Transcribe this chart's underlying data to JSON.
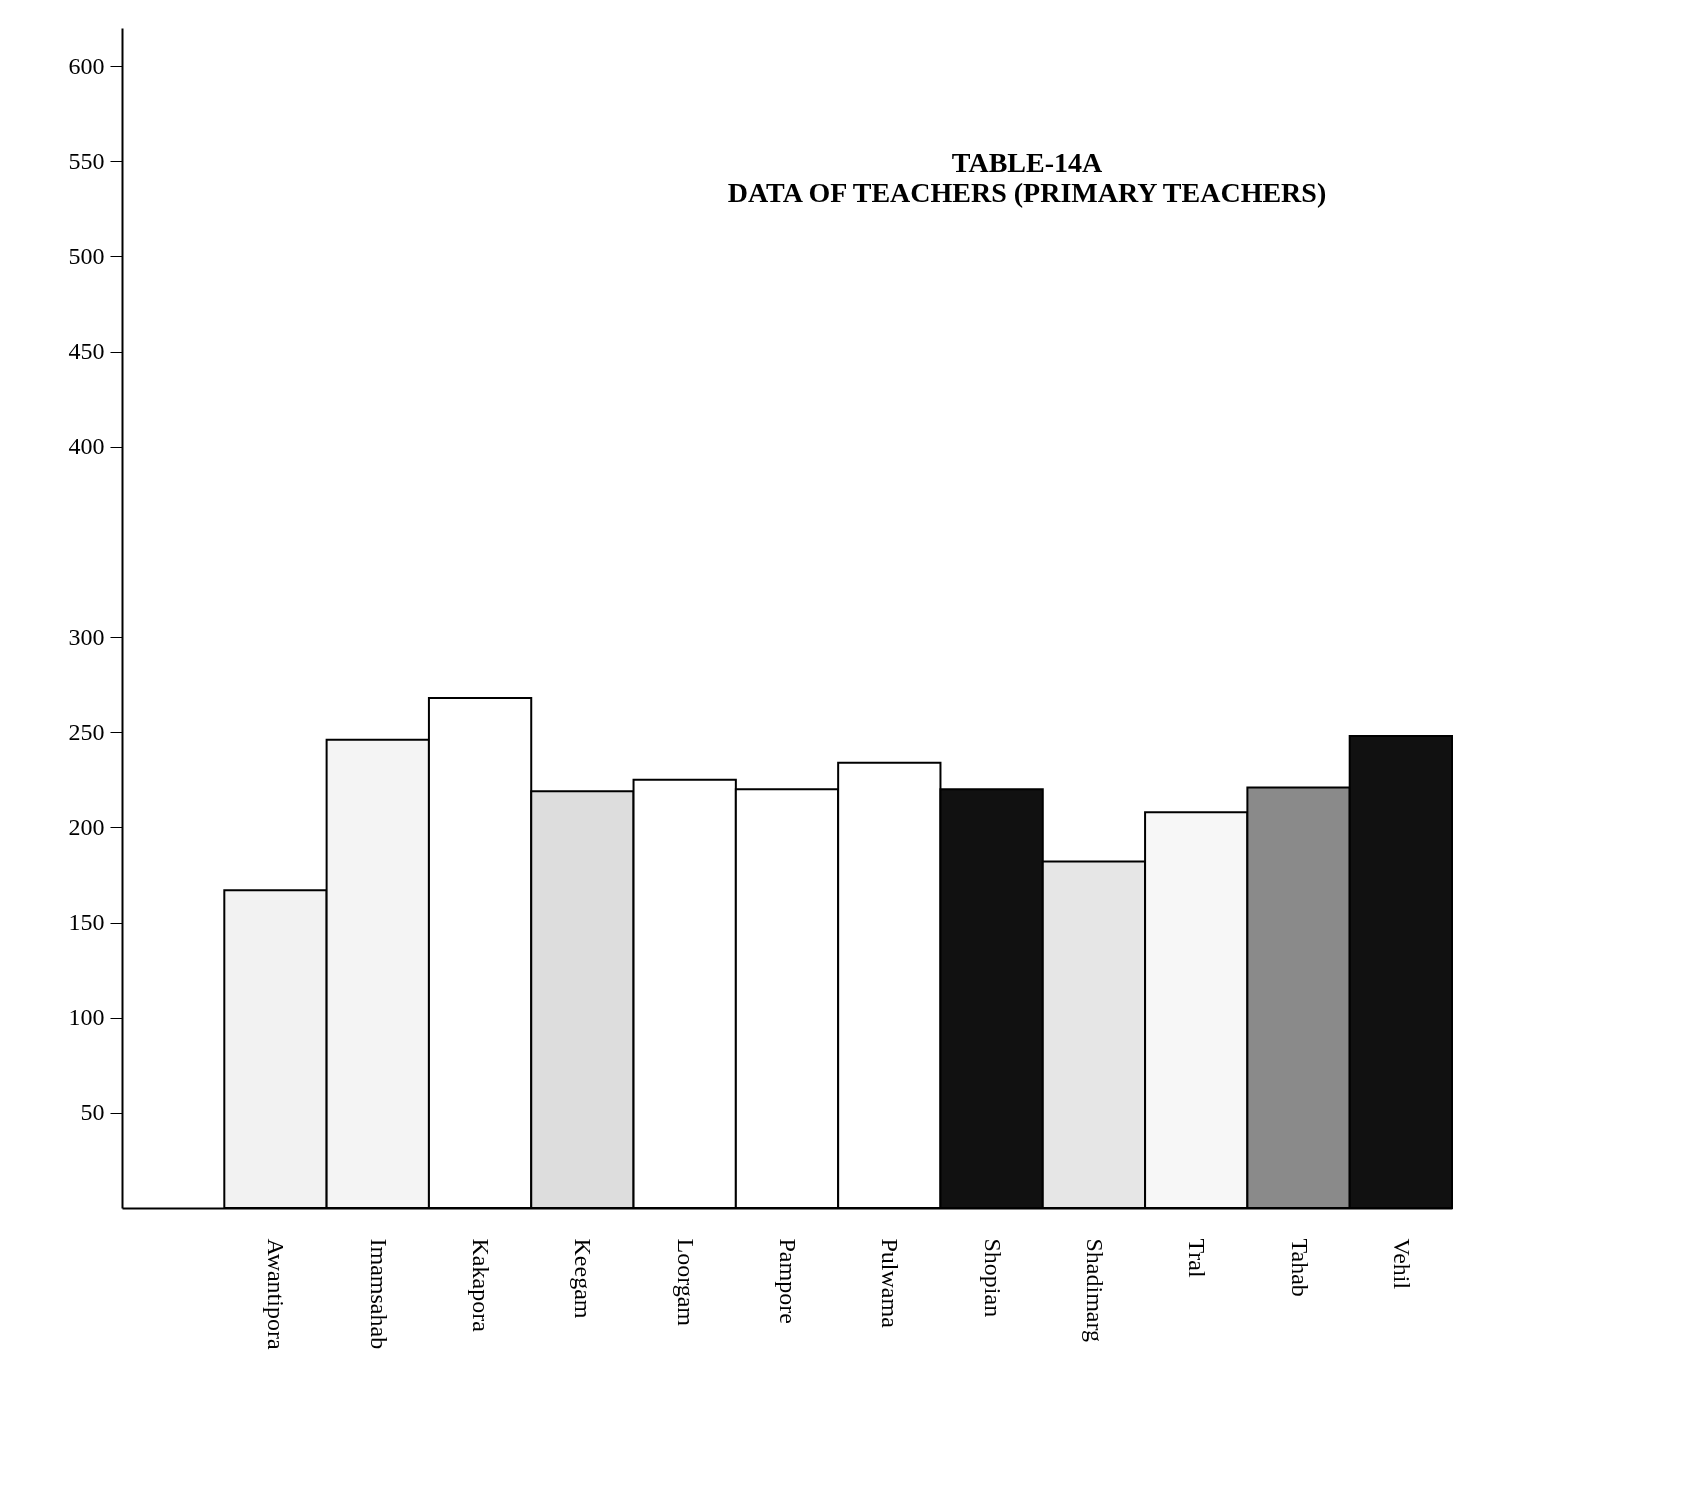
{
  "chart_data": {
    "type": "bar",
    "title": [
      "TABLE-14A",
      "DATA OF TEACHERS (PRIMARY TEACHERS)"
    ],
    "categories": [
      "Awantipora",
      "Imamsahab",
      "Kakapora",
      "Keegam",
      "Loorgam",
      "Pampore",
      "Pulwama",
      "Shopian",
      "Shadimarg",
      "Tral",
      "Tahab",
      "Vehil"
    ],
    "values": [
      167,
      246,
      268,
      219,
      225,
      220,
      234,
      220,
      182,
      208,
      221,
      248
    ],
    "colors": [
      "#f2f2f2",
      "#f4f4f4",
      "#ffffff",
      "#dddddd",
      "#ffffff",
      "#ffffff",
      "#ffffff",
      "#111111",
      "#e6e6e6",
      "#f7f7f7",
      "#8a8a8a",
      "#111111"
    ],
    "ylim": [
      0,
      620
    ],
    "yticks": [
      50,
      100,
      150,
      200,
      250,
      300,
      400,
      450,
      500,
      550,
      600
    ],
    "grid": false
  }
}
